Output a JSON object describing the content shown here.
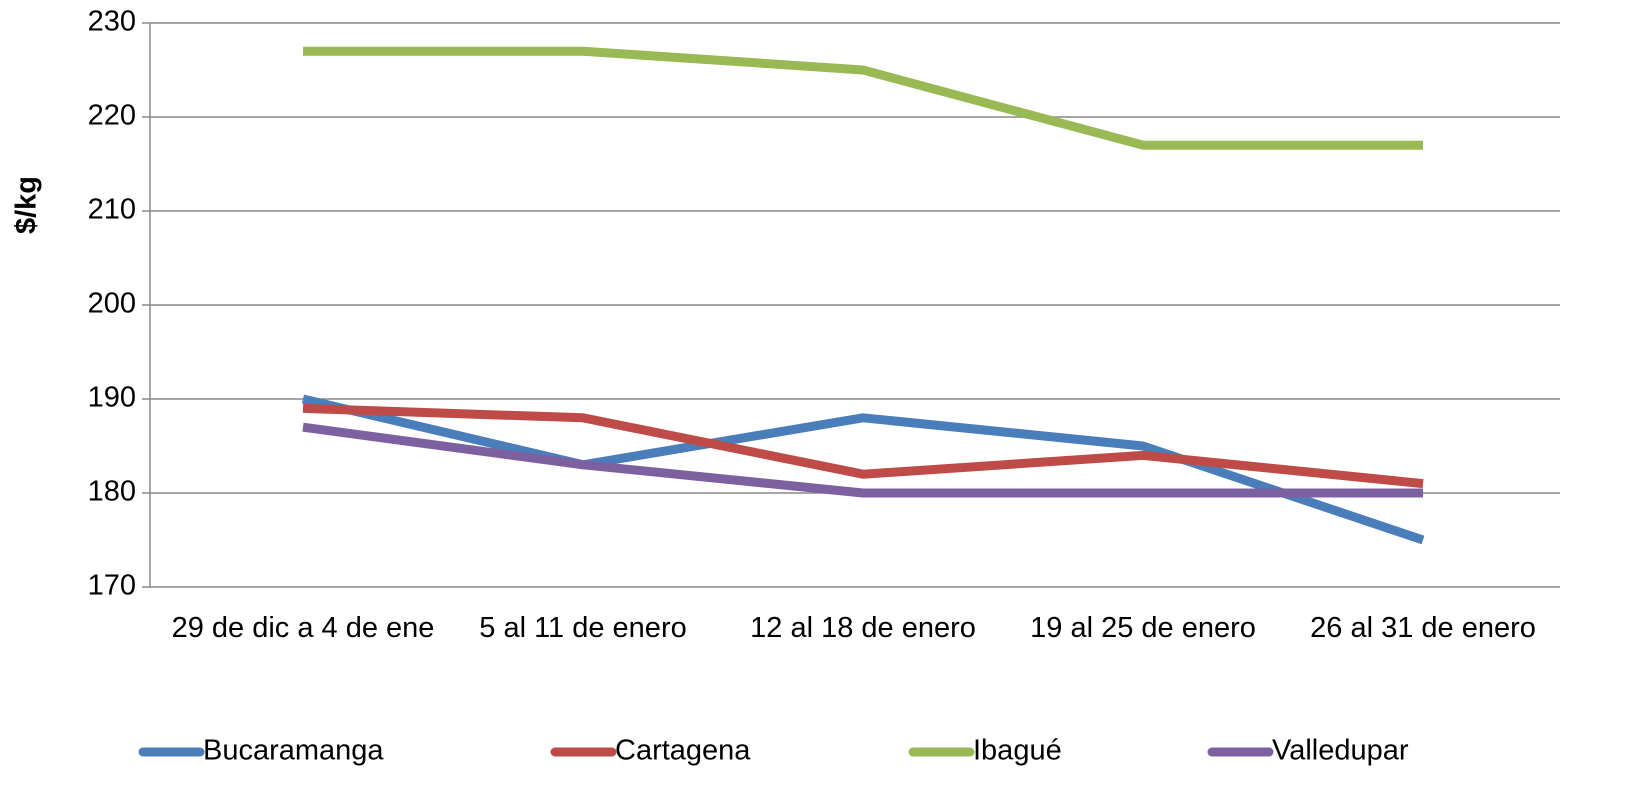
{
  "chart_data": {
    "type": "line",
    "y_label": "$/kg",
    "categories": [
      "29 de dic a 4 de ene",
      "5 al 11 de enero",
      "12 al 18 de enero",
      "19 al 25 de enero",
      "26 al 31 de enero"
    ],
    "series": [
      {
        "name": "Bucaramanga",
        "color": "#4a7ebb",
        "values": [
          190,
          183,
          188,
          185,
          175
        ]
      },
      {
        "name": "Cartagena",
        "color": "#be4b48",
        "values": [
          189,
          188,
          182,
          184,
          181
        ]
      },
      {
        "name": "Ibagué",
        "color": "#98b954",
        "values": [
          227,
          227,
          225,
          217,
          217
        ]
      },
      {
        "name": "Valledupar",
        "color": "#7d60a0",
        "values": [
          187,
          183,
          180,
          180,
          180
        ]
      }
    ],
    "ylim": [
      170,
      230
    ],
    "yticks": [
      170,
      180,
      190,
      200,
      210,
      220,
      230
    ],
    "grid": true,
    "legend": "bottom"
  }
}
